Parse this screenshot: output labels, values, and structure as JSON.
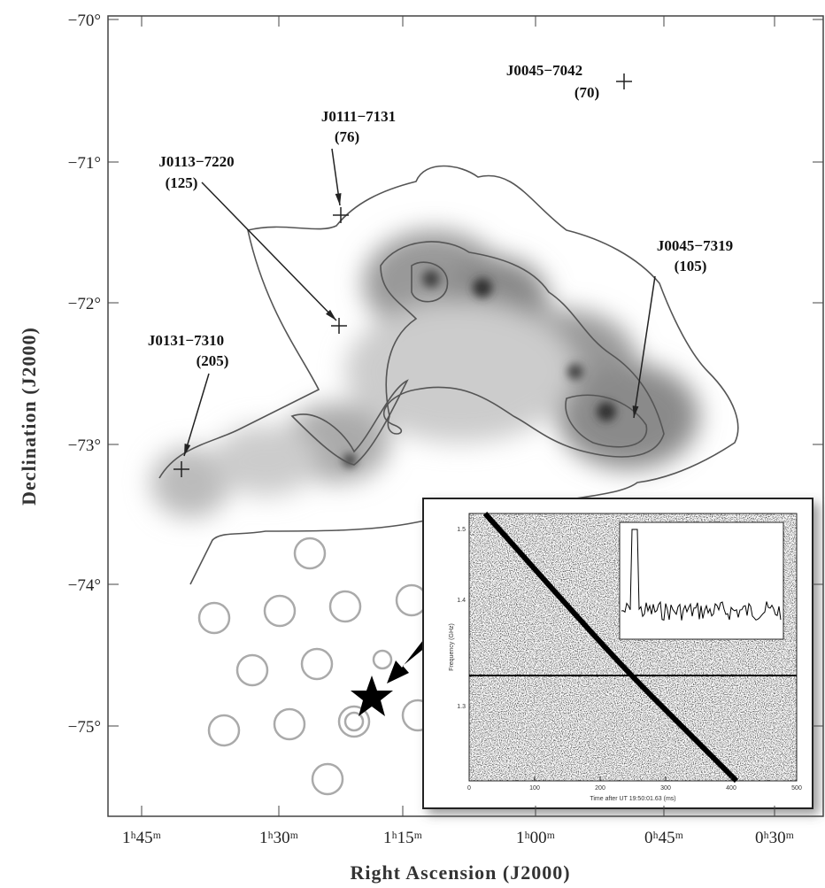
{
  "axes": {
    "x_label": "Right Ascension (J2000)",
    "y_label": "Declination (J2000)",
    "x_ticks": [
      "1ʰ45ᵐ",
      "1ʰ30ᵐ",
      "1ʰ15ᵐ",
      "1ʰ00ᵐ",
      "0ʰ45ᵐ",
      "0ʰ30ᵐ"
    ],
    "y_ticks": [
      "−70°",
      "−71°",
      "−72°",
      "−73°",
      "−74°",
      "−75°"
    ]
  },
  "pulsars": [
    {
      "name": "J0045−7042",
      "dm": "(70)"
    },
    {
      "name": "J0111−7131",
      "dm": "(76)"
    },
    {
      "name": "J0113−7220",
      "dm": "(125)"
    },
    {
      "name": "J0045−7319",
      "dm": "(105)"
    },
    {
      "name": "J0131−7310",
      "dm": "(205)"
    }
  ],
  "inset": {
    "x_label": "Time after UT 19:50:01.63 (ms)",
    "y_label": "Frequency (GHz)",
    "x_ticks": [
      "0",
      "100",
      "200",
      "300",
      "400",
      "500"
    ],
    "y_ticks": [
      "1.5",
      "1.4",
      "1.3"
    ]
  }
}
